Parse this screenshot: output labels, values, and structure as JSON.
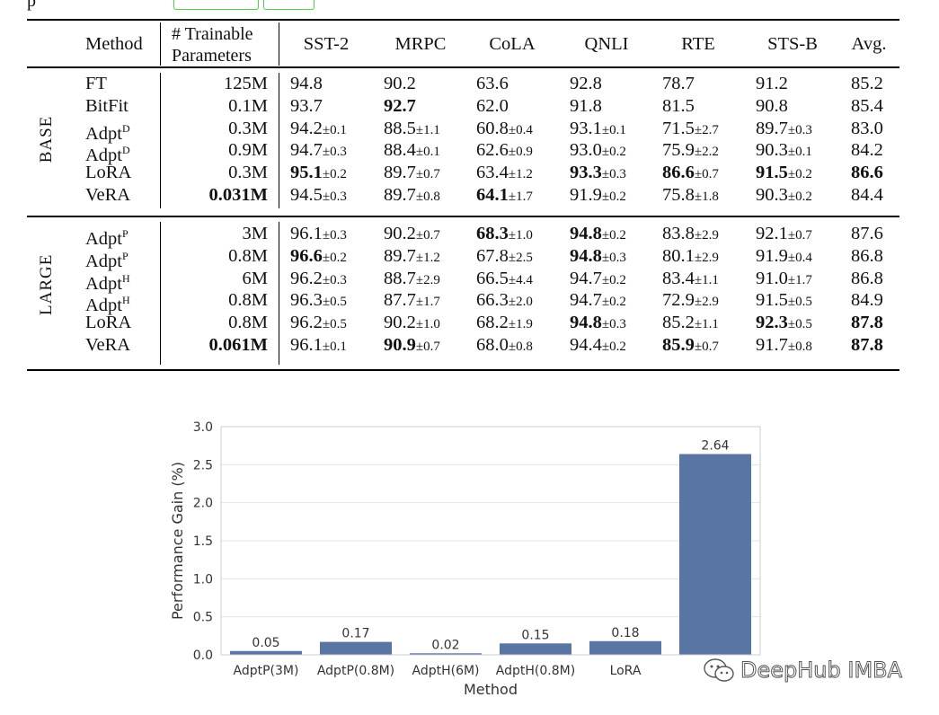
{
  "top_fragment": "p",
  "table": {
    "headers": {
      "method": "Method",
      "params_line1": "# Trainable",
      "params_line2": "Parameters",
      "tasks": [
        "SST-2",
        "MRPC",
        "CoLA",
        "QNLI",
        "RTE",
        "STS-B",
        "Avg."
      ]
    },
    "groups": [
      {
        "label": "BASE",
        "rows": [
          {
            "method": "FT",
            "sup": "",
            "params": "125M",
            "params_bold": false,
            "cells": [
              [
                "94.8",
                "",
                false
              ],
              [
                "90.2",
                "",
                false
              ],
              [
                "63.6",
                "",
                false
              ],
              [
                "92.8",
                "",
                false
              ],
              [
                "78.7",
                "",
                false
              ],
              [
                "91.2",
                "",
                false
              ],
              [
                "85.2",
                "",
                false
              ]
            ]
          },
          {
            "method": "BitFit",
            "sup": "",
            "params": "0.1M",
            "params_bold": false,
            "cells": [
              [
                "93.7",
                "",
                false
              ],
              [
                "92.7",
                "",
                true
              ],
              [
                "62.0",
                "",
                false
              ],
              [
                "91.8",
                "",
                false
              ],
              [
                "81.5",
                "",
                false
              ],
              [
                "90.8",
                "",
                false
              ],
              [
                "85.4",
                "",
                false
              ]
            ]
          },
          {
            "method": "Adpt",
            "sup": "D",
            "params": "0.3M",
            "params_bold": false,
            "cells": [
              [
                "94.2",
                "±0.1",
                false
              ],
              [
                "88.5",
                "±1.1",
                false
              ],
              [
                "60.8",
                "±0.4",
                false
              ],
              [
                "93.1",
                "±0.1",
                false
              ],
              [
                "71.5",
                "±2.7",
                false
              ],
              [
                "89.7",
                "±0.3",
                false
              ],
              [
                "83.0",
                "",
                false
              ]
            ]
          },
          {
            "method": "Adpt",
            "sup": "D",
            "params": "0.9M",
            "params_bold": false,
            "cells": [
              [
                "94.7",
                "±0.3",
                false
              ],
              [
                "88.4",
                "±0.1",
                false
              ],
              [
                "62.6",
                "±0.9",
                false
              ],
              [
                "93.0",
                "±0.2",
                false
              ],
              [
                "75.9",
                "±2.2",
                false
              ],
              [
                "90.3",
                "±0.1",
                false
              ],
              [
                "84.2",
                "",
                false
              ]
            ]
          },
          {
            "method": "LoRA",
            "sup": "",
            "params": "0.3M",
            "params_bold": false,
            "cells": [
              [
                "95.1",
                "±0.2",
                true
              ],
              [
                "89.7",
                "±0.7",
                false
              ],
              [
                "63.4",
                "±1.2",
                false
              ],
              [
                "93.3",
                "±0.3",
                true
              ],
              [
                "86.6",
                "±0.7",
                true
              ],
              [
                "91.5",
                "±0.2",
                true
              ],
              [
                "86.6",
                "",
                true
              ]
            ]
          },
          {
            "method": "VeRA",
            "sup": "",
            "params": "0.031M",
            "params_bold": true,
            "cells": [
              [
                "94.5",
                "±0.3",
                false
              ],
              [
                "89.7",
                "±0.8",
                false
              ],
              [
                "64.1",
                "±1.7",
                true
              ],
              [
                "91.9",
                "±0.2",
                false
              ],
              [
                "75.8",
                "±1.8",
                false
              ],
              [
                "90.3",
                "±0.2",
                false
              ],
              [
                "84.4",
                "",
                false
              ]
            ]
          }
        ]
      },
      {
        "label": "LARGE",
        "rows": [
          {
            "method": "Adpt",
            "sup": "P",
            "params": "3M",
            "params_bold": false,
            "cells": [
              [
                "96.1",
                "±0.3",
                false
              ],
              [
                "90.2",
                "±0.7",
                false
              ],
              [
                "68.3",
                "±1.0",
                true
              ],
              [
                "94.8",
                "±0.2",
                true
              ],
              [
                "83.8",
                "±2.9",
                false
              ],
              [
                "92.1",
                "±0.7",
                false
              ],
              [
                "87.6",
                "",
                false
              ]
            ]
          },
          {
            "method": "Adpt",
            "sup": "P",
            "params": "0.8M",
            "params_bold": false,
            "cells": [
              [
                "96.6",
                "±0.2",
                true
              ],
              [
                "89.7",
                "±1.2",
                false
              ],
              [
                "67.8",
                "±2.5",
                false
              ],
              [
                "94.8",
                "±0.3",
                true
              ],
              [
                "80.1",
                "±2.9",
                false
              ],
              [
                "91.9",
                "±0.4",
                false
              ],
              [
                "86.8",
                "",
                false
              ]
            ]
          },
          {
            "method": "Adpt",
            "sup": "H",
            "params": "6M",
            "params_bold": false,
            "cells": [
              [
                "96.2",
                "±0.3",
                false
              ],
              [
                "88.7",
                "±2.9",
                false
              ],
              [
                "66.5",
                "±4.4",
                false
              ],
              [
                "94.7",
                "±0.2",
                false
              ],
              [
                "83.4",
                "±1.1",
                false
              ],
              [
                "91.0",
                "±1.7",
                false
              ],
              [
                "86.8",
                "",
                false
              ]
            ]
          },
          {
            "method": "Adpt",
            "sup": "H",
            "params": "0.8M",
            "params_bold": false,
            "cells": [
              [
                "96.3",
                "±0.5",
                false
              ],
              [
                "87.7",
                "±1.7",
                false
              ],
              [
                "66.3",
                "±2.0",
                false
              ],
              [
                "94.7",
                "±0.2",
                false
              ],
              [
                "72.9",
                "±2.9",
                false
              ],
              [
                "91.5",
                "±0.5",
                false
              ],
              [
                "84.9",
                "",
                false
              ]
            ]
          },
          {
            "method": "LoRA",
            "sup": "",
            "params": "0.8M",
            "params_bold": false,
            "cells": [
              [
                "96.2",
                "±0.5",
                false
              ],
              [
                "90.2",
                "±1.0",
                false
              ],
              [
                "68.2",
                "±1.9",
                false
              ],
              [
                "94.8",
                "±0.3",
                true
              ],
              [
                "85.2",
                "±1.1",
                false
              ],
              [
                "92.3",
                "±0.5",
                true
              ],
              [
                "87.8",
                "",
                true
              ]
            ]
          },
          {
            "method": "VeRA",
            "sup": "",
            "params": "0.061M",
            "params_bold": true,
            "cells": [
              [
                "96.1",
                "±0.1",
                false
              ],
              [
                "90.9",
                "±0.7",
                true
              ],
              [
                "68.0",
                "±0.8",
                false
              ],
              [
                "94.4",
                "±0.2",
                false
              ],
              [
                "85.9",
                "±0.7",
                true
              ],
              [
                "91.7",
                "±0.8",
                false
              ],
              [
                "87.8",
                "",
                true
              ]
            ]
          }
        ]
      }
    ]
  },
  "chart_data": {
    "type": "bar",
    "categories": [
      "AdptP(3M)",
      "AdptP(0.8M)",
      "AdptH(6M)",
      "AdptH(0.8M)",
      "LoRA",
      "V"
    ],
    "values": [
      0.05,
      0.17,
      0.02,
      0.15,
      0.18,
      2.64
    ],
    "value_labels": [
      "0.05",
      "0.17",
      "0.02",
      "0.15",
      "0.18",
      "2.64"
    ],
    "xlabel": "Method",
    "ylabel": "Performance Gain (%)",
    "ylim": [
      0,
      3.0
    ],
    "yticks": [
      "0.0",
      "0.5",
      "1.0",
      "1.5",
      "2.0",
      "2.5",
      "3.0"
    ],
    "bar_color": "#5875a4",
    "grid": "horizontal"
  },
  "watermark": "DeepHub IMBA"
}
